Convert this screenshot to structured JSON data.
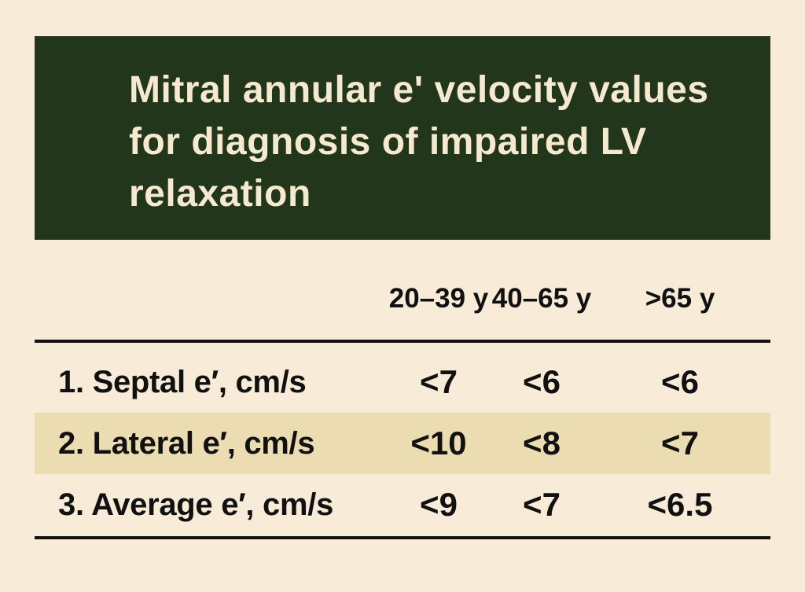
{
  "title": "Mitral annular e' velocity values for diagnosis of impaired LV relaxation",
  "table": {
    "headers": [
      "20–39 y",
      "40–65 y",
      ">65 y"
    ],
    "rows": [
      {
        "label": "1. Septal e′, cm/s",
        "values": [
          "<7",
          "<6",
          "<6"
        ]
      },
      {
        "label": "2. Lateral e′, cm/s",
        "values": [
          "<10",
          "<8",
          "<7"
        ]
      },
      {
        "label": "3. Average e′, cm/s",
        "values": [
          "<9",
          "<7",
          "<6.5"
        ]
      }
    ]
  },
  "colors": {
    "background": "#f8ecd8",
    "banner": "#22361c",
    "banner_text": "#f5ead0",
    "row_highlight": "#ecdcb2",
    "text": "#111111"
  }
}
